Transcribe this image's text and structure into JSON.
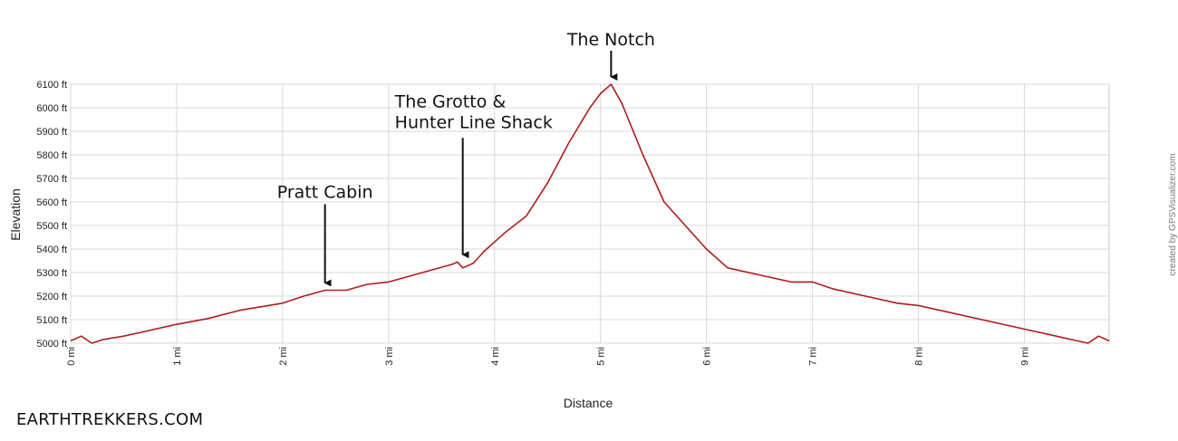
{
  "branding": {
    "site": "EARTHTREKKERS.COM"
  },
  "chart_data": {
    "type": "line",
    "xlabel": "Distance",
    "ylabel": "Elevation",
    "credit": "created by GPSVisualizer.com",
    "xlim": [
      0,
      9.8
    ],
    "ylim": [
      5000,
      6100
    ],
    "x_ticks": [
      0,
      1,
      2,
      3,
      4,
      5,
      6,
      7,
      8,
      9
    ],
    "x_tick_labels": [
      "0 mi",
      "1 mi",
      "2 mi",
      "3 mi",
      "4 mi",
      "5 mi",
      "6 mi",
      "7 mi",
      "8 mi",
      "9 mi"
    ],
    "y_ticks": [
      5000,
      5100,
      5200,
      5300,
      5400,
      5500,
      5600,
      5700,
      5800,
      5900,
      6000,
      6100
    ],
    "y_tick_labels": [
      "5000 ft",
      "5100 ft",
      "5200 ft",
      "5300 ft",
      "5400 ft",
      "5500 ft",
      "5600 ft",
      "5700 ft",
      "5800 ft",
      "5900 ft",
      "6000 ft",
      "6100 ft"
    ],
    "grid": true,
    "series": [
      {
        "color": "#b01c1c",
        "x": [
          0,
          0.1,
          0.2,
          0.3,
          0.5,
          0.7,
          1.0,
          1.3,
          1.6,
          1.8,
          2.0,
          2.2,
          2.4,
          2.6,
          2.8,
          3.0,
          3.2,
          3.4,
          3.6,
          3.65,
          3.7,
          3.8,
          3.9,
          4.1,
          4.3,
          4.5,
          4.7,
          4.9,
          5.0,
          5.1,
          5.2,
          5.4,
          5.6,
          5.8,
          6.0,
          6.2,
          6.5,
          6.8,
          7.0,
          7.2,
          7.5,
          7.8,
          8.0,
          8.3,
          8.6,
          9.0,
          9.3,
          9.5,
          9.6,
          9.7,
          9.8
        ],
        "y": [
          5010,
          5030,
          5000,
          5015,
          5030,
          5050,
          5080,
          5105,
          5140,
          5155,
          5170,
          5200,
          5225,
          5225,
          5250,
          5260,
          5285,
          5310,
          5335,
          5345,
          5320,
          5340,
          5390,
          5470,
          5540,
          5680,
          5850,
          6000,
          6060,
          6100,
          6020,
          5800,
          5600,
          5500,
          5400,
          5320,
          5290,
          5260,
          5260,
          5230,
          5200,
          5170,
          5160,
          5130,
          5100,
          5060,
          5030,
          5010,
          5000,
          5030,
          5010
        ]
      }
    ],
    "annotations": [
      {
        "lines": [
          "Pratt Cabin"
        ],
        "x": 2.4,
        "y": 5225
      },
      {
        "lines": [
          "The Grotto &",
          "Hunter Line Shack"
        ],
        "x": 3.7,
        "y": 5345
      },
      {
        "lines": [
          "The Notch"
        ],
        "x": 5.1,
        "y": 6100
      }
    ]
  }
}
